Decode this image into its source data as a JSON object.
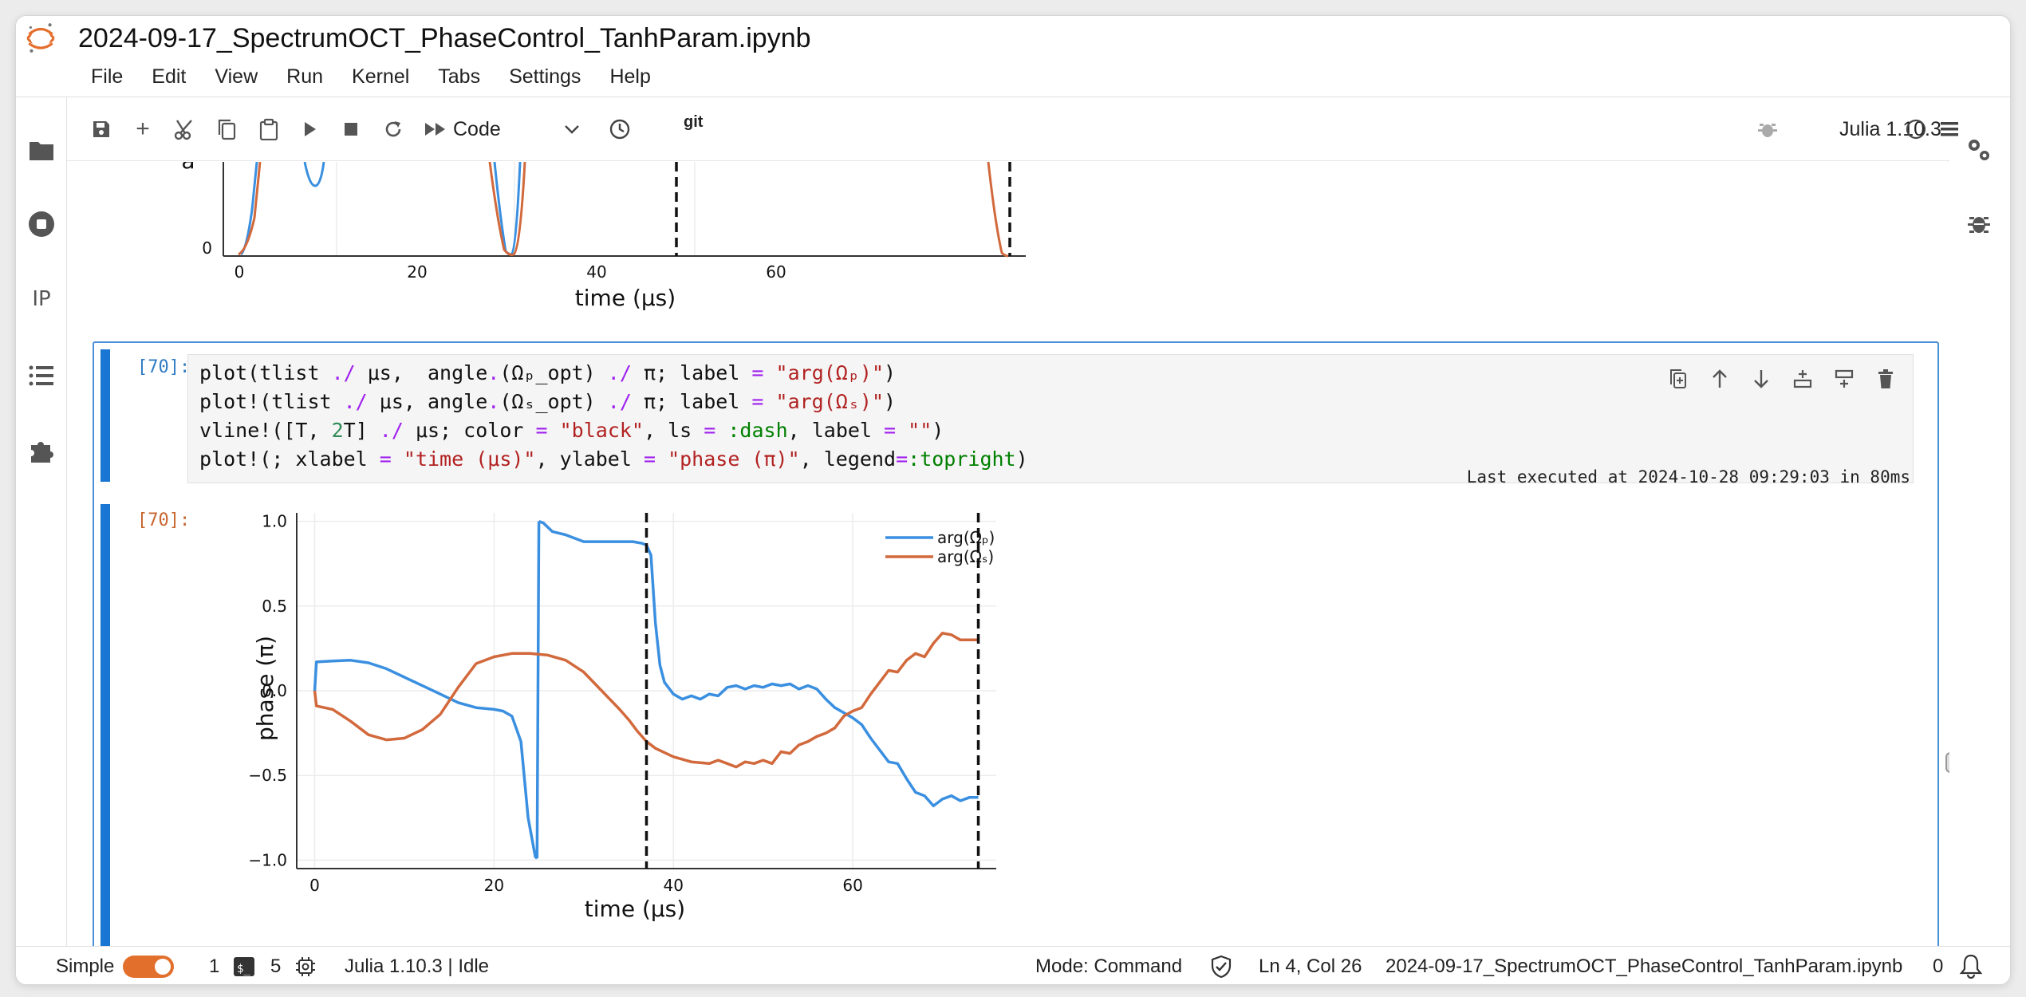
{
  "app": {
    "title": "2024-09-17_SpectrumOCT_PhaseControl_TanhParam.ipynb",
    "menu": [
      "File",
      "Edit",
      "View",
      "Run",
      "Kernel",
      "Tabs",
      "Settings",
      "Help"
    ]
  },
  "toolbar": {
    "cell_type": "Code",
    "git_label": "git",
    "kernel": "Julia 1.10.3",
    "icons": [
      "save-icon",
      "add-icon",
      "cut-icon",
      "copy-icon",
      "paste-icon",
      "run-icon",
      "stop-icon",
      "restart-icon",
      "fast-forward-icon"
    ]
  },
  "left_sidebar": {
    "icons": [
      "folder-icon",
      "stop-circle-icon",
      "ip-icon",
      "list-icon",
      "puzzle-icon"
    ],
    "ip_label": "IP"
  },
  "cell_prev": {
    "plot": {
      "ylabel_partial": "a",
      "y_tick": "0",
      "x_ticks": [
        "0",
        "20",
        "40",
        "60"
      ],
      "xlabel": "time (μs)"
    }
  },
  "cell_70": {
    "in_prompt": "[70]:",
    "out_prompt": "[70]:",
    "code": [
      "plot(tlist ./ μs,  angle.(Ωₚ_opt) ./ π; label = \"arg(Ωₚ)\")",
      "plot!(tlist ./ μs, angle.(Ωₛ_opt) ./ π; label = \"arg(Ωₛ)\")",
      "vline!([T, 2T] ./ μs; color = \"black\", ls = :dash, label = \"\")",
      "plot!(; xlabel = \"time (μs)\", ylabel = \"phase (π)\", legend=:topright)"
    ],
    "exec_status": "Last executed at 2024-10-28 09:29:03 in 80ms"
  },
  "chart_data": {
    "type": "line",
    "xlabel": "time (μs)",
    "ylabel": "phase (π)",
    "xlim": [
      -2,
      76
    ],
    "ylim": [
      -1.05,
      1.05
    ],
    "x_ticks": [
      "0",
      "20",
      "40",
      "60"
    ],
    "y_ticks": [
      "1.0",
      "0.5",
      "0.0",
      "−0.5",
      "−1.0"
    ],
    "legend": "top-right",
    "grid": true,
    "vlines": [
      37,
      74
    ],
    "series": [
      {
        "name": "arg(Ωₚ)",
        "color": "#3a8fe0",
        "x": [
          0,
          0.2,
          2,
          4,
          6,
          8,
          10,
          12,
          14,
          16,
          18,
          20,
          21,
          22,
          23,
          23.8,
          24.6,
          24.8,
          25,
          25.5,
          26.5,
          28,
          30,
          32,
          34,
          35.5,
          36.5,
          37,
          37.5,
          38,
          38.5,
          39,
          40,
          41,
          42,
          43,
          44,
          45,
          46,
          47,
          48,
          49,
          50,
          51,
          52,
          53,
          54,
          55,
          56,
          57,
          58,
          59,
          60,
          61,
          62,
          63,
          64,
          65,
          66,
          67,
          68,
          69,
          70,
          71,
          72,
          73,
          74
        ],
        "y": [
          0,
          0.17,
          0.175,
          0.18,
          0.165,
          0.13,
          0.08,
          0.03,
          -0.02,
          -0.07,
          -0.1,
          -0.11,
          -0.12,
          -0.15,
          -0.3,
          -0.75,
          -0.98,
          -0.99,
          1.0,
          0.99,
          0.94,
          0.92,
          0.88,
          0.88,
          0.88,
          0.88,
          0.87,
          0.86,
          0.8,
          0.4,
          0.15,
          0.05,
          -0.02,
          -0.05,
          -0.03,
          -0.05,
          -0.02,
          -0.03,
          0.02,
          0.03,
          0.01,
          0.03,
          0.02,
          0.04,
          0.03,
          0.04,
          0.01,
          0.03,
          0.01,
          -0.05,
          -0.1,
          -0.13,
          -0.16,
          -0.2,
          -0.28,
          -0.35,
          -0.42,
          -0.43,
          -0.52,
          -0.6,
          -0.62,
          -0.68,
          -0.64,
          -0.62,
          -0.65,
          -0.63,
          -0.63
        ]
      },
      {
        "name": "arg(Ωₛ)",
        "color": "#d2693c",
        "x": [
          0,
          0.2,
          2,
          4,
          6,
          8,
          10,
          12,
          14,
          16,
          18,
          20,
          22,
          24,
          26,
          28,
          30,
          32,
          34,
          35,
          36,
          37,
          38,
          40,
          42,
          44,
          45,
          46,
          47,
          48,
          49,
          50,
          51,
          52,
          53,
          54,
          55,
          56,
          57,
          58,
          59,
          60,
          61,
          62,
          63,
          64,
          65,
          66,
          67,
          68,
          69,
          70,
          71,
          72,
          73,
          74
        ],
        "y": [
          0,
          -0.09,
          -0.11,
          -0.18,
          -0.26,
          -0.29,
          -0.28,
          -0.23,
          -0.14,
          0.02,
          0.16,
          0.2,
          0.22,
          0.22,
          0.21,
          0.18,
          0.11,
          0.0,
          -0.11,
          -0.17,
          -0.24,
          -0.3,
          -0.34,
          -0.39,
          -0.42,
          -0.43,
          -0.41,
          -0.43,
          -0.45,
          -0.42,
          -0.43,
          -0.41,
          -0.43,
          -0.36,
          -0.37,
          -0.32,
          -0.3,
          -0.27,
          -0.25,
          -0.22,
          -0.15,
          -0.12,
          -0.1,
          -0.02,
          0.05,
          0.12,
          0.11,
          0.18,
          0.22,
          0.2,
          0.28,
          0.34,
          0.33,
          0.3,
          0.3,
          0.3
        ]
      }
    ]
  },
  "statusbar": {
    "mode_label": "Simple",
    "terminals_count": "1",
    "kernels_count": "5",
    "kernel_status": "Julia 1.10.3 | Idle",
    "mode": "Mode: Command",
    "cursor": "Ln 4, Col 26",
    "filename": "2024-09-17_SpectrumOCT_PhaseControl_TanhParam.ipynb",
    "notifications": "0"
  }
}
